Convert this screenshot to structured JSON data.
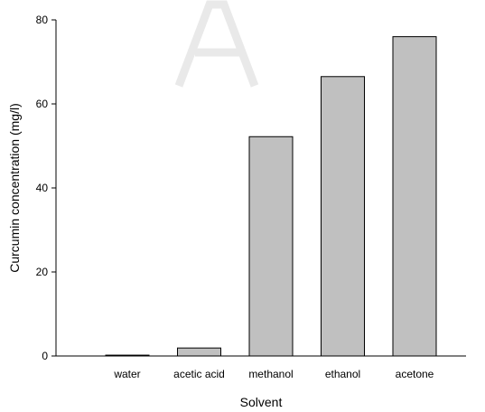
{
  "chart_data": {
    "type": "bar",
    "categories": [
      "water",
      "acetic acid",
      "methanol",
      "ethanol",
      "acetone"
    ],
    "values": [
      0.2,
      1.9,
      52.2,
      66.5,
      76.0
    ],
    "title": "",
    "xlabel": "Solvent",
    "ylabel": "Curcumin concentration (mg/l)",
    "ylim": [
      0,
      80
    ],
    "yticks": [
      0,
      20,
      40,
      60,
      80
    ],
    "grid": false,
    "legend": "none",
    "bar_color": "#c0c0c0",
    "edge_color": "#000000"
  }
}
